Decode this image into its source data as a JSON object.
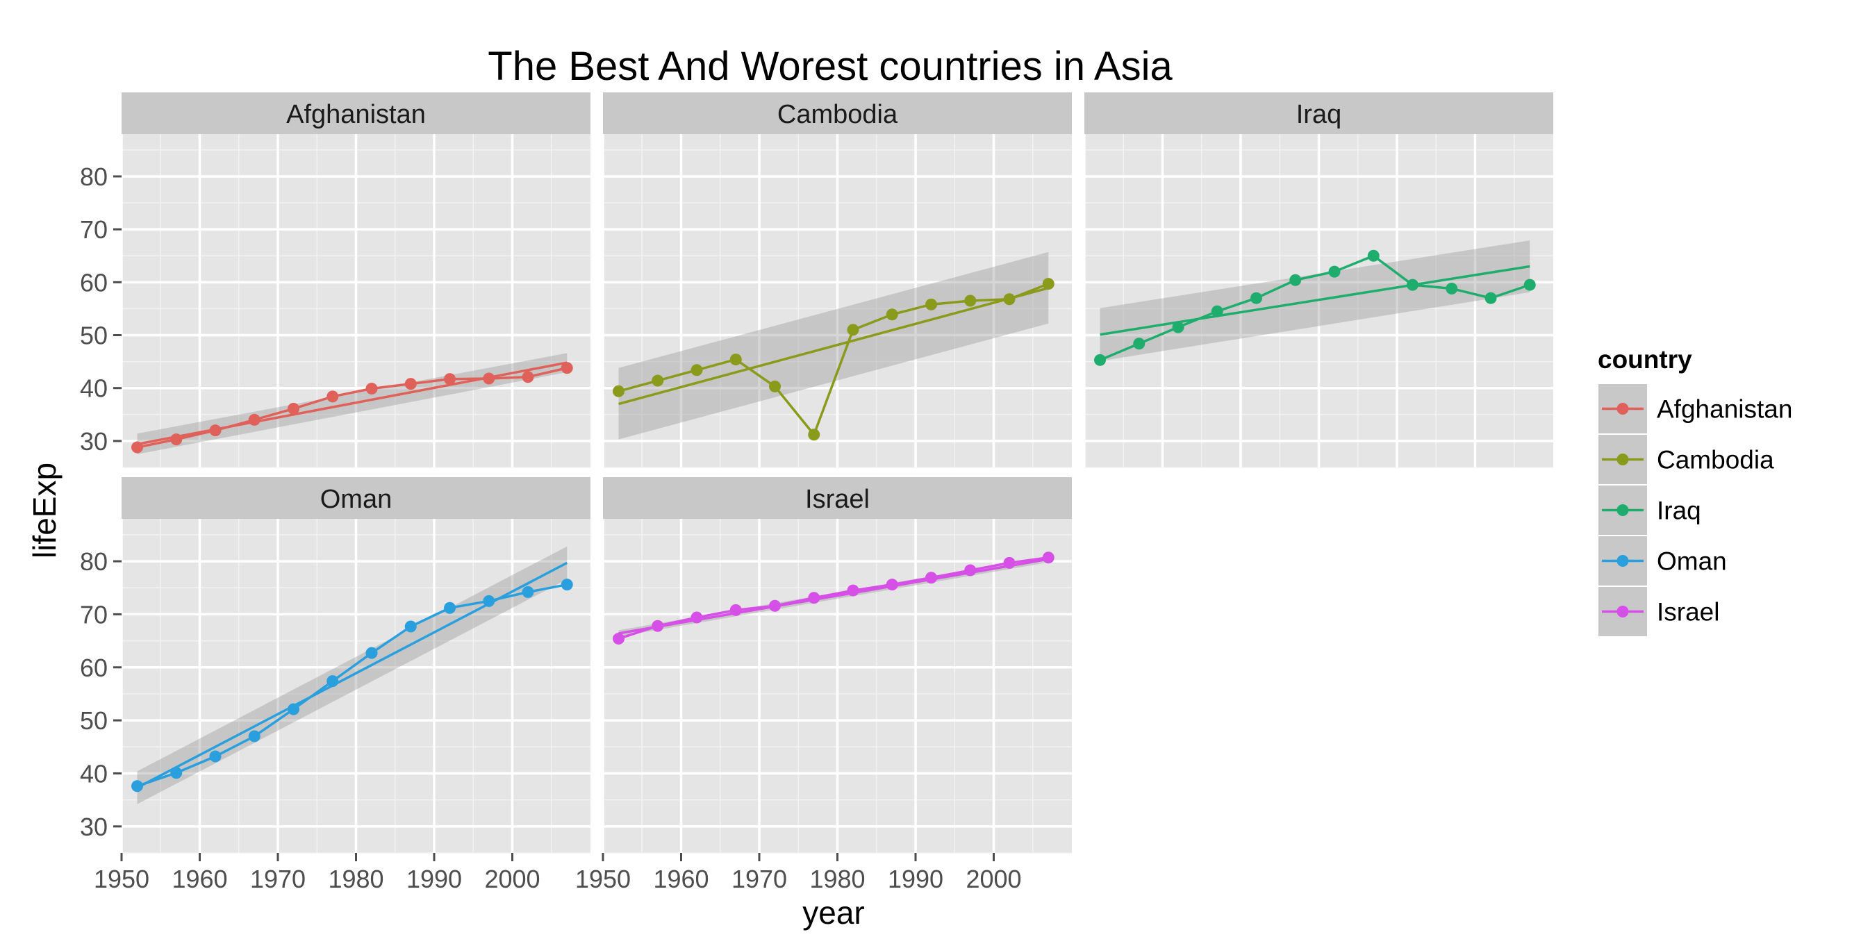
{
  "chart_data": {
    "type": "line",
    "title": "The Best And Worest countries in Asia",
    "xlabel": "year",
    "ylabel": "lifeExp",
    "xlim": [
      1950,
      2010
    ],
    "ylim": [
      25,
      88
    ],
    "x_ticks": [
      "1950",
      "1960",
      "1970",
      "1980",
      "1990",
      "2000"
    ],
    "y_ticks": [
      "30",
      "40",
      "50",
      "60",
      "70",
      "80"
    ],
    "grid": true,
    "smooth": "linear fit with confidence band",
    "legend": {
      "title": "country",
      "position": "right"
    },
    "x": [
      1952,
      1957,
      1962,
      1967,
      1972,
      1977,
      1982,
      1987,
      1992,
      1997,
      2002,
      2007
    ],
    "series": [
      {
        "name": "Afghanistan",
        "color": "#e0615a",
        "values": [
          28.8,
          30.3,
          32.0,
          34.0,
          36.1,
          38.4,
          39.9,
          40.8,
          41.7,
          41.8,
          42.1,
          43.8
        ],
        "fit": [
          29.4,
          44.8
        ],
        "band": [
          [
            31.4,
            27.5
          ],
          [
            46.6,
            43.0
          ]
        ]
      },
      {
        "name": "Cambodia",
        "color": "#8a9a1a",
        "values": [
          39.4,
          41.4,
          43.4,
          45.4,
          40.3,
          31.2,
          51.0,
          53.9,
          55.8,
          56.5,
          56.8,
          59.7
        ],
        "fit": [
          37.0,
          58.9
        ],
        "band": [
          [
            43.8,
            30.3
          ],
          [
            65.7,
            52.2
          ]
        ]
      },
      {
        "name": "Iraq",
        "color": "#1fad6e",
        "values": [
          45.3,
          48.4,
          51.5,
          54.5,
          57.0,
          60.4,
          62.0,
          65.0,
          59.5,
          58.8,
          57.0,
          59.5
        ],
        "fit": [
          50.1,
          63.0
        ],
        "band": [
          [
            55.1,
            45.1
          ],
          [
            67.9,
            58.1
          ]
        ]
      },
      {
        "name": "Oman",
        "color": "#2a9fde",
        "values": [
          37.6,
          40.1,
          43.2,
          47.0,
          52.1,
          57.4,
          62.7,
          67.7,
          71.2,
          72.5,
          74.2,
          75.6
        ],
        "fit": [
          37.3,
          79.7
        ],
        "band": [
          [
            40.4,
            34.2
          ],
          [
            82.8,
            76.6
          ]
        ]
      },
      {
        "name": "Israel",
        "color": "#d64fe6",
        "values": [
          65.4,
          67.8,
          69.4,
          70.8,
          71.6,
          73.1,
          74.5,
          75.6,
          76.9,
          78.3,
          79.7,
          80.7
        ],
        "fit": [
          66.4,
          80.4
        ],
        "band": [
          [
            67.0,
            65.8
          ],
          [
            81.0,
            79.8
          ]
        ]
      }
    ]
  }
}
